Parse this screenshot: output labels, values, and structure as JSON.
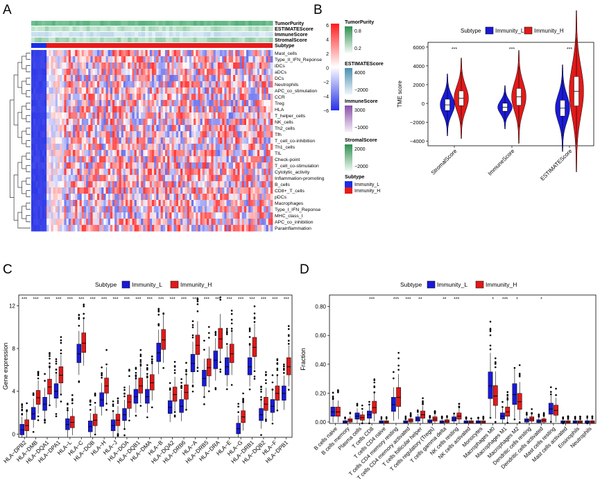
{
  "colors": {
    "low": "#2b34e8",
    "mid": "#ffffff",
    "high": "#ff2a2a",
    "immunity_l": "#1a1ad6",
    "immunity_h": "#e01a1a",
    "green": "#3a9a5a",
    "purple": "#8a4fa8",
    "teal": "#4a8fb0"
  },
  "chart_data": [
    {
      "type": "heatmap",
      "panel_label": "A",
      "annotation_rows": [
        "TumorPurity",
        "ESTIMATEScore",
        "ImmuneScore",
        "StromalScore",
        "Subtype"
      ],
      "rows": [
        "Mast_cells",
        "Type_II_IFN_Reponse",
        "iDCs",
        "aDCs",
        "DCs",
        "Neutrophils",
        "APC_co_stimulation",
        "CCR",
        "Treg",
        "HLA",
        "T_helper_cells",
        "NK_cells",
        "Th2_cells",
        "Tfh",
        "T_cell_co-inhibition",
        "Th1_cells",
        "TIL",
        "Check-point",
        "T_cell_co-stimulation",
        "Cytolytic_activity",
        "Inflammation-promoting",
        "B_cells",
        "CD8+_T_cells",
        "pDCs",
        "Macrophages",
        "Type_I_IFN_Reponse",
        "MHC_class_I",
        "APC_co_inhibition",
        "Parainflammation"
      ],
      "legends": [
        {
          "title": "",
          "ticks": [
            "6",
            "4",
            "2",
            "0",
            "−2",
            "−4",
            "−6"
          ]
        },
        {
          "title": "TumorPurity",
          "ticks": [
            "0.8",
            "0.2"
          ]
        },
        {
          "title": "ESTIMATEScore",
          "ticks": [
            "4000",
            "−2000"
          ]
        },
        {
          "title": "ImmuneScore",
          "ticks": [
            "3000",
            "−1000"
          ]
        },
        {
          "title": "StromalScore",
          "ticks": [
            "2000",
            "−2000"
          ]
        },
        {
          "title": "Subtype",
          "ticks": [
            "Immunity_L",
            "Immunity_H"
          ]
        }
      ]
    },
    {
      "type": "violin",
      "panel_label": "B",
      "legend_title": "Subtype",
      "legend": [
        "Immunity_L",
        "Immunity_H"
      ],
      "ylabel": "TME score",
      "ylim": [
        -4500,
        6500
      ],
      "yticks": [
        -4000,
        -2000,
        0,
        2000,
        4000,
        6000
      ],
      "categories": [
        "StromalScore",
        "ImmuneScore",
        "ESTIMATEScore"
      ],
      "significance": [
        "***",
        "***",
        "***"
      ],
      "medians": {
        "Immunity_L": [
          -150,
          -400,
          -500
        ],
        "Immunity_H": [
          550,
          700,
          1300
        ]
      }
    },
    {
      "type": "boxplot",
      "panel_label": "C",
      "legend_title": "Subtype",
      "legend": [
        "Immunity_L",
        "Immunity_H"
      ],
      "ylabel": "Gene expression",
      "ylim": [
        -0.3,
        13
      ],
      "yticks": [
        0,
        4,
        8,
        12
      ],
      "categories": [
        "HLA−DPB2",
        "HLA−DMB",
        "HLA−DQA1",
        "HLA−DPA1",
        "HLA−L",
        "HLA−C",
        "HLA−DOB",
        "HLA−H",
        "HLA−J",
        "HLA−DOA",
        "HLA−DQB1",
        "HLA−DMA",
        "HLA−B",
        "HLA−DQA2",
        "HLA−DRB6",
        "HLA−A",
        "HLA−DRB5",
        "HLA−DRA",
        "HLA−E",
        "HLA−G",
        "HLA−DRB1",
        "HLA−DQB2",
        "HLA−F",
        "HLA−DPB1"
      ],
      "significance": [
        "***",
        "***",
        "***",
        "***",
        "***",
        "***",
        "***",
        "***",
        "***",
        "***",
        "***",
        "***",
        "***",
        "***",
        "***",
        "***",
        "***",
        "***",
        "***",
        "***",
        "***",
        "***",
        "***",
        "***"
      ],
      "medians": {
        "Immunity_L": [
          0.4,
          1.9,
          2.8,
          4.0,
          0.9,
          7.5,
          0.7,
          3.2,
          0.8,
          1.8,
          3.5,
          3.5,
          7.6,
          2.5,
          2.6,
          6.6,
          5.2,
          6.9,
          6.3,
          0.5,
          6.3,
          1.8,
          2.6,
          3.8
        ],
        "Immunity_H": [
          0.8,
          3.4,
          4.4,
          5.5,
          1.1,
          8.5,
          1.3,
          4.5,
          1.3,
          3.0,
          4.5,
          4.8,
          8.8,
          3.7,
          3.9,
          8.3,
          6.2,
          8.9,
          7.5,
          1.6,
          8.1,
          2.8,
          3.8,
          6.3
        ]
      }
    },
    {
      "type": "boxplot",
      "panel_label": "D",
      "legend_title": "Subtype",
      "legend": [
        "Immunity_L",
        "Immunity_H"
      ],
      "ylabel": "Fraction",
      "ylim": [
        -0.01,
        0.88
      ],
      "yticks": [
        0.0,
        0.2,
        0.4,
        0.6,
        0.8
      ],
      "ytick_labels": [
        "0.00",
        "0.20",
        "0.40",
        "0.60",
        "0.80"
      ],
      "categories": [
        "B cells naive",
        "B cells memory",
        "Plasma cells",
        "T cells CD8",
        "T cells CD4 naive",
        "T cells CD4 memory resting",
        "T cells CD4 memory activated",
        "T cells follicular helper",
        "T cells regulatory (Tregs)",
        "T cells gamma delta",
        "NK cells resting",
        "NK cells activated",
        "Monocytes",
        "Macrophages M0",
        "Macrophages M1",
        "Macrophages M2",
        "Dendritic cells resting",
        "Dendritic cells activated",
        "Mast cells resting",
        "Mast cells activated",
        "Eosinophils",
        "Neutrophils"
      ],
      "significance": [
        "",
        "",
        "",
        "***",
        "",
        "***",
        "***",
        "**",
        "",
        "**",
        "***",
        "",
        "",
        "*",
        "***",
        "*",
        "",
        "*",
        "",
        "",
        "",
        ""
      ],
      "medians": {
        "Immunity_L": [
          0.07,
          0.0,
          0.04,
          0.05,
          0.0,
          0.12,
          0.0,
          0.02,
          0.005,
          0.0,
          0.02,
          0.0,
          0.0,
          0.25,
          0.04,
          0.19,
          0.01,
          0.005,
          0.09,
          0.0,
          0.0,
          0.0
        ],
        "Immunity_H": [
          0.07,
          0.01,
          0.03,
          0.1,
          0.0,
          0.17,
          0.01,
          0.05,
          0.02,
          0.005,
          0.04,
          0.0,
          0.0,
          0.18,
          0.07,
          0.14,
          0.02,
          0.01,
          0.08,
          0.0,
          0.0,
          0.0
        ]
      }
    }
  ]
}
